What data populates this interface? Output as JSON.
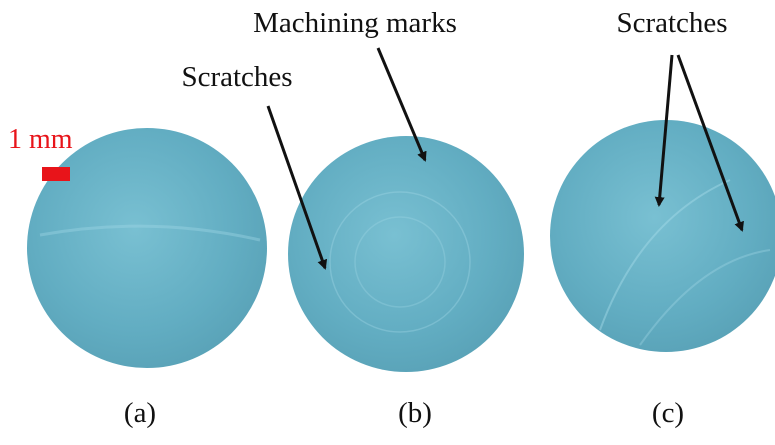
{
  "figure": {
    "scale_bar": {
      "label": "1 mm"
    },
    "panels": [
      {
        "label": "(a)",
        "annotations": []
      },
      {
        "label": "(b)",
        "annotations": [
          "Machining marks",
          "Scratches"
        ]
      },
      {
        "label": "(c)",
        "annotations": [
          "Scratches"
        ]
      }
    ]
  }
}
